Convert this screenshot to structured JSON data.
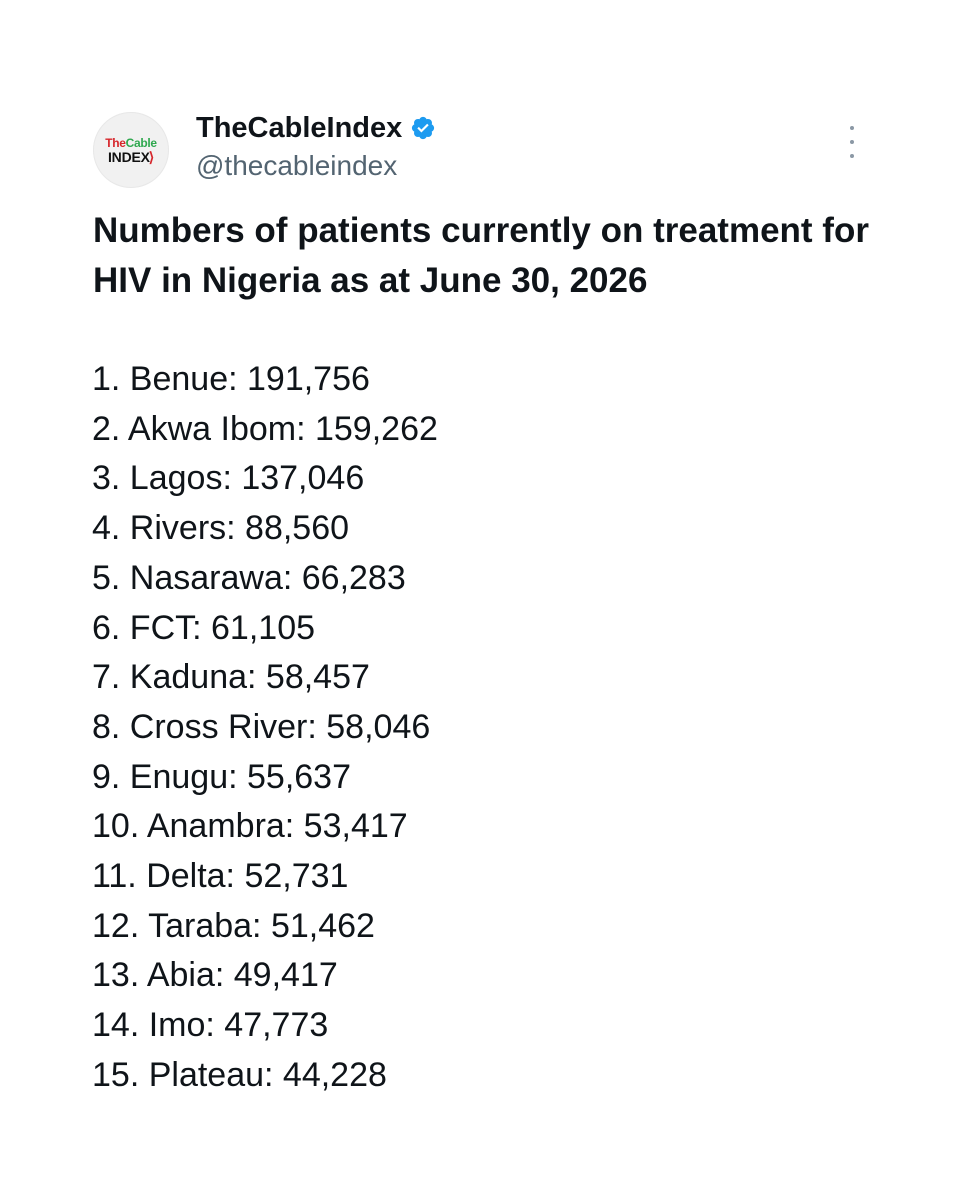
{
  "account": {
    "display_name": "TheCableIndex",
    "handle": "@thecableindex",
    "avatar_logo": {
      "the": "The",
      "cable": "Cable",
      "index": "INDEX",
      "mark": "⟩"
    },
    "verified_icon": "verified-badge-icon",
    "verified_color": "#1d9bf0"
  },
  "more_icon": "more-options-icon",
  "tweet": {
    "title": "Numbers of patients currently on treatment for HIV in Nigeria as at June 30, 2026",
    "items": [
      "1. Benue: 191,756",
      "2. Akwa Ibom: 159,262",
      "3. Lagos: 137,046",
      "4. Rivers: 88,560",
      "5. Nasarawa: 66,283",
      "6. FCT: 61,105",
      "7. Kaduna: 58,457",
      "8. Cross River: 58,046",
      "9. Enugu: 55,637",
      "10. Anambra: 53,417",
      "11. Delta: 52,731",
      "12. Taraba: 51,462",
      "13. Abia: 49,417",
      "14. Imo: 47,773",
      "15. Plateau: 44,228"
    ]
  }
}
